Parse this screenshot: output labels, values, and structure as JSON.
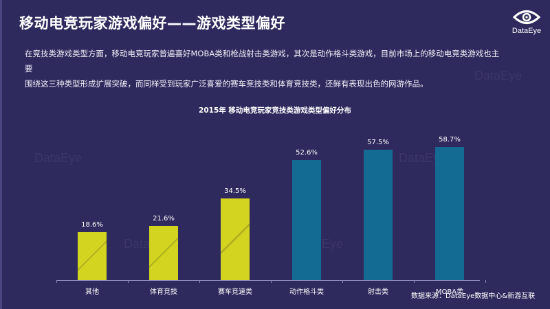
{
  "header": {
    "title": "移动电竞玩家游戏偏好——游戏类型偏好",
    "logo_text": "DataEye"
  },
  "description": {
    "line1": "在竞技类游戏类型方面，移动电竞玩家普遍喜好MOBA类和枪战射击类游戏，其次是动作格斗类游戏，目前市场上的移动电竞类游戏也主要",
    "line2": "围绕这三种类型形成扩展突破，而同样受到玩家广泛喜爱的赛车竞技类和体育竞技类，还鲜有表现出色的网游作品。"
  },
  "watermark": "DataEye",
  "footer": {
    "source": "数据来源：DataEye数据中心&新游互联"
  },
  "colors": {
    "background": "#2f2a5e",
    "yellow_bar": "#d2d41f",
    "blue_bar": "#136b94"
  },
  "chart_data": {
    "type": "bar",
    "title": "2015年 移动电竞玩家竞技类游戏类型偏好分布",
    "categories": [
      "其他",
      "体育竞技",
      "赛车竞速类",
      "动作格斗类",
      "射击类",
      "MOBA类"
    ],
    "values": [
      18.6,
      21.6,
      34.5,
      52.6,
      57.5,
      58.7
    ],
    "labels": [
      "18.6%",
      "21.6%",
      "34.5%",
      "52.6%",
      "57.5%",
      "58.7%"
    ],
    "bar_colors": [
      "#d2d41f",
      "#d2d41f",
      "#d2d41f",
      "#136b94",
      "#136b94",
      "#136b94"
    ],
    "xlabel": "",
    "ylabel": "",
    "unit": "%",
    "grid": false,
    "legend": null
  }
}
